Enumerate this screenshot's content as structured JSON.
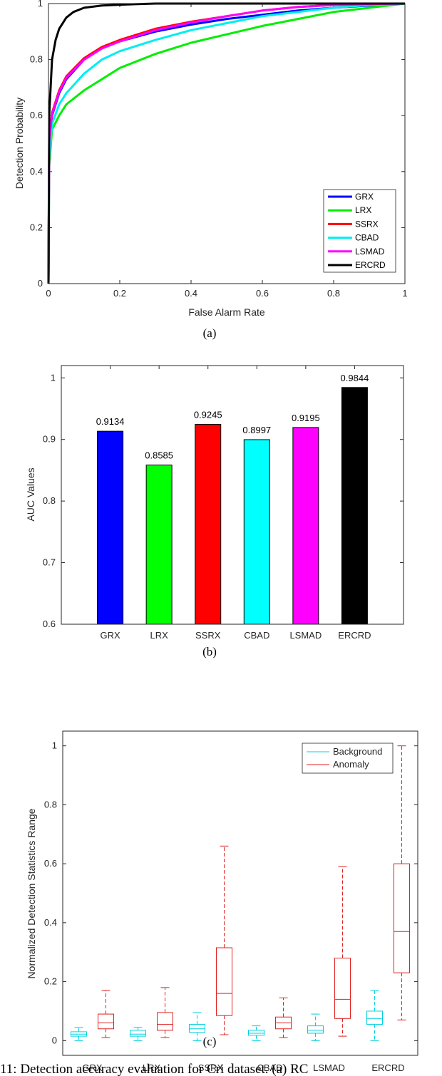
{
  "chart_data": [
    {
      "type": "line",
      "panel": "(a)",
      "xlabel": "False Alarm Rate",
      "ylabel": "Detection Probability",
      "xlim": [
        0,
        1
      ],
      "ylim": [
        0,
        1
      ],
      "xticks": [
        "0",
        "0.2",
        "0.4",
        "0.6",
        "0.8",
        "1"
      ],
      "yticks": [
        "0",
        "0.2",
        "0.4",
        "0.6",
        "0.8",
        "1"
      ],
      "legend_position": "bottom-right",
      "series": [
        {
          "name": "GRX",
          "color": "#0000ff",
          "x": [
            0,
            0.002,
            0.01,
            0.03,
            0.05,
            0.1,
            0.15,
            0.2,
            0.3,
            0.4,
            0.5,
            0.6,
            0.7,
            0.8,
            0.9,
            1.0
          ],
          "y": [
            0,
            0.5,
            0.6,
            0.68,
            0.73,
            0.8,
            0.84,
            0.865,
            0.9,
            0.925,
            0.945,
            0.96,
            0.975,
            0.985,
            0.993,
            1.0
          ]
        },
        {
          "name": "LRX",
          "color": "#00ee00",
          "x": [
            0,
            0.002,
            0.01,
            0.03,
            0.05,
            0.1,
            0.15,
            0.2,
            0.3,
            0.4,
            0.5,
            0.6,
            0.7,
            0.8,
            0.9,
            1.0
          ],
          "y": [
            0,
            0.42,
            0.55,
            0.6,
            0.64,
            0.69,
            0.73,
            0.77,
            0.82,
            0.86,
            0.89,
            0.92,
            0.945,
            0.97,
            0.985,
            1.0
          ]
        },
        {
          "name": "SSRX",
          "color": "#ff0000",
          "x": [
            0,
            0.002,
            0.01,
            0.03,
            0.05,
            0.1,
            0.15,
            0.2,
            0.3,
            0.4,
            0.5,
            0.6,
            0.7,
            0.8,
            0.9,
            1.0
          ],
          "y": [
            0,
            0.52,
            0.61,
            0.69,
            0.74,
            0.805,
            0.845,
            0.87,
            0.91,
            0.935,
            0.955,
            0.975,
            0.988,
            0.995,
            0.998,
            1.0
          ]
        },
        {
          "name": "CBAD",
          "color": "#00eeee",
          "x": [
            0,
            0.002,
            0.01,
            0.03,
            0.05,
            0.1,
            0.15,
            0.2,
            0.3,
            0.4,
            0.5,
            0.6,
            0.7,
            0.8,
            0.9,
            1.0
          ],
          "y": [
            0,
            0.45,
            0.57,
            0.64,
            0.68,
            0.75,
            0.8,
            0.83,
            0.87,
            0.905,
            0.93,
            0.955,
            0.97,
            0.985,
            0.995,
            1.0
          ]
        },
        {
          "name": "LSMAD",
          "color": "#ff00ff",
          "x": [
            0,
            0.002,
            0.01,
            0.03,
            0.05,
            0.1,
            0.15,
            0.2,
            0.3,
            0.4,
            0.5,
            0.6,
            0.7,
            0.8,
            0.9,
            1.0
          ],
          "y": [
            0,
            0.51,
            0.605,
            0.685,
            0.735,
            0.8,
            0.84,
            0.865,
            0.905,
            0.932,
            0.955,
            0.975,
            0.988,
            0.995,
            0.998,
            1.0
          ]
        },
        {
          "name": "ERCRD",
          "color": "#000000",
          "x": [
            0,
            0.002,
            0.01,
            0.02,
            0.03,
            0.05,
            0.07,
            0.1,
            0.15,
            0.2,
            0.25,
            0.3,
            0.4,
            0.5,
            1.0
          ],
          "y": [
            0,
            0.6,
            0.8,
            0.87,
            0.91,
            0.95,
            0.97,
            0.985,
            0.993,
            0.996,
            0.998,
            1.0,
            1.0,
            1.0,
            1.0
          ]
        }
      ]
    },
    {
      "type": "bar",
      "panel": "(b)",
      "ylabel": "AUC Values",
      "ylim": [
        0.6,
        1.02
      ],
      "yticks": [
        "0.6",
        "0.7",
        "0.8",
        "0.9",
        "1"
      ],
      "categories": [
        "GRX",
        "LRX",
        "SSRX",
        "CBAD",
        "LSMAD",
        "ERCRD"
      ],
      "values": [
        0.9134,
        0.8585,
        0.9245,
        0.8997,
        0.9195,
        0.9844
      ],
      "value_labels": [
        "0.9134",
        "0.8585",
        "0.9245",
        "0.8997",
        "0.9195",
        "0.9844"
      ],
      "colors": [
        "#0000ff",
        "#00ff00",
        "#ff0000",
        "#00ffff",
        "#ff00ff",
        "#000000"
      ]
    },
    {
      "type": "box",
      "panel": "(c)",
      "ylabel": "Normalized Detection Statistics Range",
      "ylim": [
        -0.05,
        1.05
      ],
      "yticks": [
        "0",
        "0.2",
        "0.4",
        "0.6",
        "0.8",
        "1"
      ],
      "categories": [
        "GRX",
        "LRX",
        "SSRX",
        "CBAD",
        "LSMAD",
        "ERCRD"
      ],
      "legend_position": "top-right",
      "legend": [
        {
          "name": "Background",
          "color": "#00d0e0"
        },
        {
          "name": "Anomaly",
          "color": "#e02020"
        }
      ],
      "boxes": [
        {
          "category": "GRX",
          "background": {
            "min": 0.0,
            "q1": 0.015,
            "median": 0.022,
            "q3": 0.03,
            "max": 0.045
          },
          "anomaly": {
            "min": 0.01,
            "q1": 0.04,
            "median": 0.06,
            "q3": 0.09,
            "max": 0.17
          }
        },
        {
          "category": "LRX",
          "background": {
            "min": 0.0,
            "q1": 0.015,
            "median": 0.022,
            "q3": 0.035,
            "max": 0.045
          },
          "anomaly": {
            "min": 0.01,
            "q1": 0.035,
            "median": 0.055,
            "q3": 0.095,
            "max": 0.18
          }
        },
        {
          "category": "SSRX",
          "background": {
            "min": 0.0,
            "q1": 0.028,
            "median": 0.04,
            "q3": 0.055,
            "max": 0.095
          },
          "anomaly": {
            "min": 0.02,
            "q1": 0.085,
            "median": 0.16,
            "q3": 0.315,
            "max": 0.66
          }
        },
        {
          "category": "CBAD",
          "background": {
            "min": 0.0,
            "q1": 0.018,
            "median": 0.025,
            "q3": 0.035,
            "max": 0.05
          },
          "anomaly": {
            "min": 0.01,
            "q1": 0.04,
            "median": 0.06,
            "q3": 0.08,
            "max": 0.145
          }
        },
        {
          "category": "LSMAD",
          "background": {
            "min": 0.0,
            "q1": 0.025,
            "median": 0.035,
            "q3": 0.05,
            "max": 0.09
          },
          "anomaly": {
            "min": 0.015,
            "q1": 0.075,
            "median": 0.14,
            "q3": 0.28,
            "max": 0.59
          }
        },
        {
          "category": "ERCRD",
          "background": {
            "min": 0.0,
            "q1": 0.055,
            "median": 0.075,
            "q3": 0.1,
            "max": 0.17
          },
          "anomaly": {
            "min": 0.07,
            "q1": 0.23,
            "median": 0.37,
            "q3": 0.6,
            "max": 1.0
          }
        }
      ]
    }
  ],
  "caption": "11: Detection accuracy evaluation for Cri dataset. (a) RC"
}
